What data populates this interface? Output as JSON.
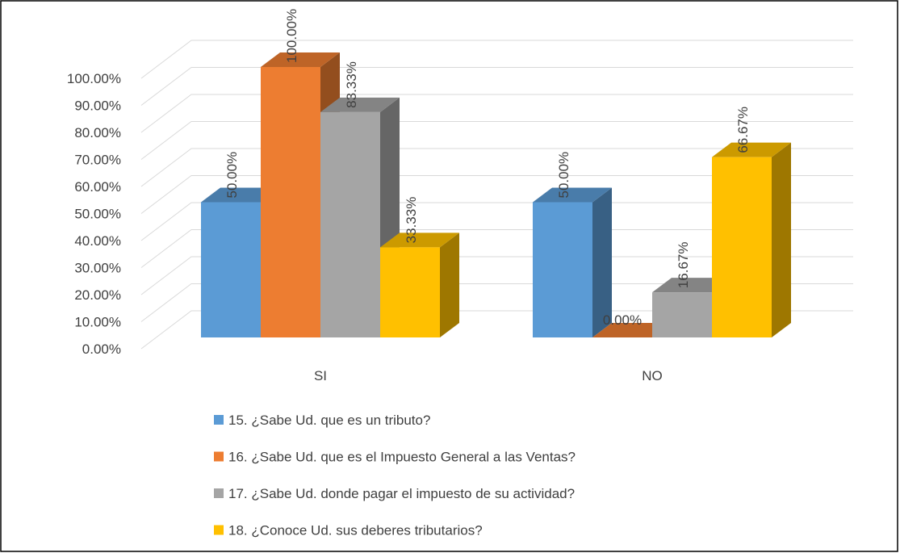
{
  "chart_data": {
    "type": "bar3d",
    "categories": [
      "SI",
      "NO"
    ],
    "series": [
      {
        "name": "15. ¿Sabe Ud. que es un tributo?",
        "color": "#5b9bd5",
        "values": [
          50,
          50
        ],
        "value_labels": [
          "50.00%",
          "50.00%"
        ]
      },
      {
        "name": "16. ¿Sabe Ud. que es el Impuesto General a las Ventas?",
        "color": "#ed7d31",
        "values": [
          100,
          0
        ],
        "value_labels": [
          "100.00%",
          "0.00%"
        ]
      },
      {
        "name": "17. ¿Sabe Ud. donde pagar el impuesto de su actividad?",
        "color": "#a5a5a5",
        "values": [
          83.33,
          16.67
        ],
        "value_labels": [
          "83.33%",
          "16.67%"
        ]
      },
      {
        "name": "18. ¿Conoce Ud. sus deberes tributarios?",
        "color": "#ffc000",
        "values": [
          33.33,
          66.67
        ],
        "value_labels": [
          "33.33%",
          "66.67%"
        ]
      }
    ],
    "ylim": [
      0,
      100
    ],
    "yticks": [
      {
        "value": 0,
        "label": "0.00%"
      },
      {
        "value": 10,
        "label": "10.00%"
      },
      {
        "value": 20,
        "label": "20.00%"
      },
      {
        "value": 30,
        "label": "30.00%"
      },
      {
        "value": 40,
        "label": "40.00%"
      },
      {
        "value": 50,
        "label": "50.00%"
      },
      {
        "value": 60,
        "label": "60.00%"
      },
      {
        "value": 70,
        "label": "70.00%"
      },
      {
        "value": 80,
        "label": "80.00%"
      },
      {
        "value": 90,
        "label": "90.00%"
      },
      {
        "value": 100,
        "label": "100.00%"
      }
    ],
    "grid": true,
    "legend": "bottom"
  }
}
